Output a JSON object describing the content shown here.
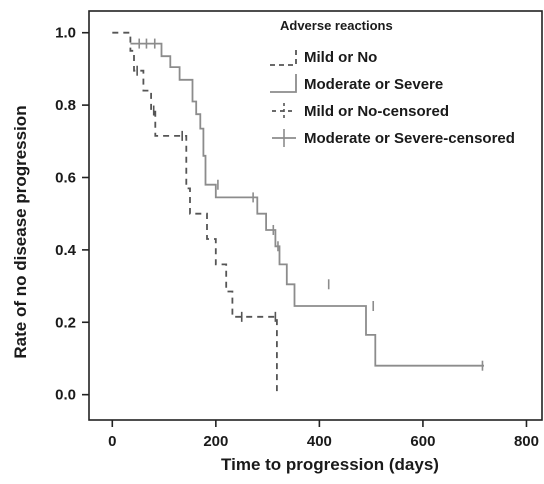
{
  "chart_data": {
    "type": "line",
    "subtype": "kaplan-meier",
    "xlabel": "Time to progression (days)",
    "ylabel": "Rate of no disease progression",
    "xlim": [
      -45,
      830
    ],
    "ylim": [
      -0.07,
      1.06
    ],
    "xticks": [
      0,
      200,
      400,
      600,
      800
    ],
    "xtick_labels": [
      "0",
      "200",
      "400",
      "600",
      "800"
    ],
    "yticks": [
      0.0,
      0.2,
      0.4,
      0.6,
      0.8,
      1.0
    ],
    "ytick_labels": [
      "0.0",
      "0.2",
      "0.4",
      "0.6",
      "0.8",
      "1.0"
    ],
    "grid": false,
    "legend": {
      "title": "Adverse reactions",
      "position": "top-right",
      "entries": [
        "Mild or No",
        "Moderate or Severe",
        "Mild or No-censored",
        "Moderate or Severe-censored"
      ]
    },
    "series": [
      {
        "name": "Mild or No",
        "style": "dashed",
        "color": "#555555",
        "x": [
          0,
          35,
          35,
          42,
          42,
          60,
          60,
          75,
          75,
          83,
          83,
          95,
          95,
          143,
          143,
          150,
          150,
          183,
          183,
          200,
          200,
          220,
          220,
          232,
          232,
          318,
          318
        ],
        "y": [
          1.0,
          1.0,
          0.95,
          0.95,
          0.895,
          0.895,
          0.84,
          0.84,
          0.785,
          0.785,
          0.715,
          0.715,
          0.715,
          0.715,
          0.57,
          0.57,
          0.5,
          0.5,
          0.43,
          0.43,
          0.36,
          0.36,
          0.285,
          0.285,
          0.215,
          0.215,
          0.0
        ],
        "censored": [
          {
            "x": 48,
            "y": 0.895
          },
          {
            "x": 80,
            "y": 0.785
          },
          {
            "x": 135,
            "y": 0.715
          },
          {
            "x": 250,
            "y": 0.215
          },
          {
            "x": 315,
            "y": 0.215
          }
        ]
      },
      {
        "name": "Moderate or Severe",
        "style": "solid",
        "color": "#8c8c8c",
        "x": [
          35,
          95,
          95,
          112,
          112,
          130,
          130,
          155,
          155,
          162,
          162,
          170,
          170,
          176,
          176,
          180,
          180,
          200,
          200,
          280,
          280,
          297,
          297,
          315,
          315,
          323,
          323,
          337,
          337,
          352,
          352,
          490,
          490,
          508,
          508,
          603,
          603,
          718
        ],
        "y": [
          0.97,
          0.97,
          0.935,
          0.935,
          0.905,
          0.905,
          0.87,
          0.87,
          0.81,
          0.81,
          0.775,
          0.775,
          0.735,
          0.735,
          0.66,
          0.66,
          0.58,
          0.58,
          0.545,
          0.545,
          0.5,
          0.5,
          0.455,
          0.455,
          0.41,
          0.41,
          0.36,
          0.36,
          0.305,
          0.305,
          0.245,
          0.245,
          0.165,
          0.165,
          0.08,
          0.08,
          0.08,
          0.08
        ],
        "censored": [
          {
            "x": 52,
            "y": 0.97
          },
          {
            "x": 66,
            "y": 0.97
          },
          {
            "x": 82,
            "y": 0.97
          },
          {
            "x": 204,
            "y": 0.58
          },
          {
            "x": 272,
            "y": 0.545
          },
          {
            "x": 311,
            "y": 0.455
          },
          {
            "x": 320,
            "y": 0.41
          },
          {
            "x": 418,
            "y": 0.305
          },
          {
            "x": 504,
            "y": 0.245
          },
          {
            "x": 715,
            "y": 0.08
          }
        ]
      }
    ]
  }
}
